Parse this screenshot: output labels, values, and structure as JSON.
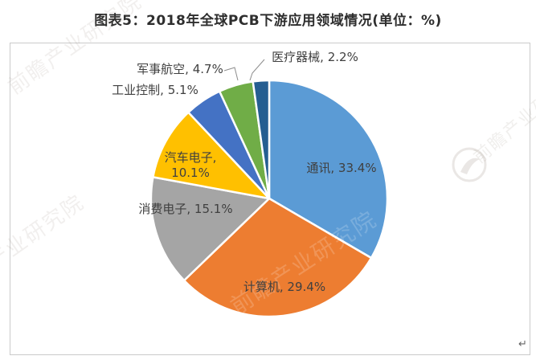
{
  "title": "图表5：2018年全球PCB下游应用领域情况(单位：%)",
  "chart_data": {
    "type": "pie",
    "title": "图表5：2018年全球PCB下游应用领域情况(单位：%)",
    "unit": "%",
    "categories": [
      "通讯",
      "计算机",
      "消费电子",
      "汽车电子",
      "工业控制",
      "军事航空",
      "医疗器械"
    ],
    "values": [
      33.4,
      29.4,
      15.1,
      10.1,
      5.1,
      4.7,
      2.2
    ],
    "labels": [
      "通讯, 33.4%",
      "计算机, 29.4%",
      "消费电子, 15.1%",
      "汽车电子, 10.1%",
      "工业控制, 5.1%",
      "军事航空, 4.7%",
      "医疗器械, 2.2%"
    ],
    "colors": [
      "#5B9BD5",
      "#ED7D31",
      "#A5A5A5",
      "#FFC000",
      "#4472C4",
      "#70AD47",
      "#255E91"
    ],
    "start_angle_deg": 0,
    "direction": "clockwise",
    "legend": "none",
    "label_color": "#404040",
    "slice_border_color": "#ffffff"
  },
  "watermark": {
    "text": "前瞻产业研究院",
    "short_text": "产业研究院",
    "logo_text": "前瞻"
  },
  "page": {
    "return_mark": "↵"
  }
}
